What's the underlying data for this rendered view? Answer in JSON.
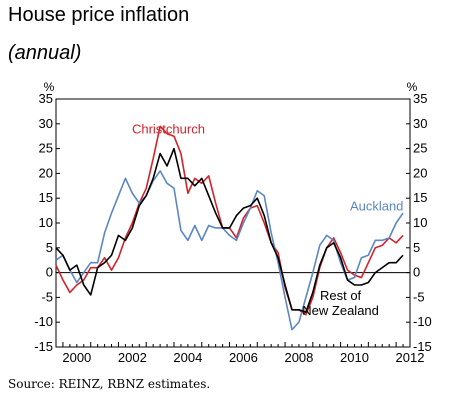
{
  "header": {
    "title": "House price inflation",
    "subtitle": "(annual)"
  },
  "footer": {
    "source": "Source: REINZ, RBNZ estimates."
  },
  "chart_data": {
    "type": "line",
    "title": "House price inflation",
    "subtitle": "(annual)",
    "y_unit_left": "%",
    "y_unit_right": "%",
    "xlim": [
      1999.75,
      2012.5
    ],
    "ylim": [
      -15,
      35
    ],
    "x_ticks": [
      2000,
      2002,
      2004,
      2006,
      2008,
      2010,
      2012
    ],
    "y_ticks": [
      -15,
      -10,
      -5,
      0,
      5,
      10,
      15,
      20,
      25,
      30,
      35
    ],
    "grid": false,
    "zero_line": true,
    "series": [
      {
        "name": "Christchurch",
        "color": "#d2232a",
        "label_x": 2003.8,
        "label_y": 28,
        "x": [
          1999.75,
          2000.0,
          2000.25,
          2000.5,
          2000.75,
          2001.0,
          2001.25,
          2001.5,
          2001.75,
          2002.0,
          2002.25,
          2002.5,
          2002.75,
          2003.0,
          2003.25,
          2003.5,
          2003.75,
          2004.0,
          2004.25,
          2004.5,
          2004.75,
          2005.0,
          2005.25,
          2005.5,
          2005.75,
          2006.0,
          2006.25,
          2006.5,
          2006.75,
          2007.0,
          2007.25,
          2007.5,
          2007.75,
          2008.0,
          2008.25,
          2008.5,
          2008.75,
          2009.0,
          2009.25,
          2009.5,
          2009.75,
          2010.0,
          2010.25,
          2010.5,
          2010.75,
          2011.0,
          2011.25,
          2011.5,
          2011.75,
          2012.0,
          2012.25
        ],
        "y": [
          1.5,
          -1.5,
          -4.0,
          -2.5,
          -1.5,
          1.0,
          1.0,
          3.0,
          0.5,
          3.0,
          7.0,
          10.0,
          14.0,
          17.0,
          23.0,
          29.5,
          28.0,
          27.5,
          24.0,
          16.0,
          19.0,
          18.0,
          19.5,
          14.0,
          9.0,
          9.0,
          7.0,
          11.0,
          13.0,
          13.5,
          10.0,
          6.0,
          4.0,
          -3.0,
          -7.5,
          -7.5,
          -8.5,
          -5.0,
          1.0,
          5.0,
          7.0,
          4.0,
          0.5,
          -0.5,
          -1.0,
          2.0,
          5.0,
          5.5,
          7.0,
          6.0,
          7.5
        ]
      },
      {
        "name": "Auckland",
        "color": "#5b87c5",
        "label_x": 2011.3,
        "label_y": 12.5,
        "x": [
          1999.75,
          2000.0,
          2000.25,
          2000.5,
          2000.75,
          2001.0,
          2001.25,
          2001.5,
          2001.75,
          2002.0,
          2002.25,
          2002.5,
          2002.75,
          2003.0,
          2003.25,
          2003.5,
          2003.75,
          2004.0,
          2004.25,
          2004.5,
          2004.75,
          2005.0,
          2005.25,
          2005.5,
          2005.75,
          2006.0,
          2006.25,
          2006.5,
          2006.75,
          2007.0,
          2007.25,
          2007.5,
          2007.75,
          2008.0,
          2008.25,
          2008.5,
          2008.75,
          2009.0,
          2009.25,
          2009.5,
          2009.75,
          2010.0,
          2010.25,
          2010.5,
          2010.75,
          2011.0,
          2011.25,
          2011.5,
          2011.75,
          2012.0,
          2012.25
        ],
        "y": [
          2.5,
          3.5,
          0.5,
          -2.0,
          0.0,
          2.0,
          2.0,
          8.0,
          12.0,
          15.5,
          19.0,
          16.0,
          14.0,
          15.5,
          18.5,
          20.5,
          18.0,
          17.0,
          8.5,
          6.5,
          9.5,
          6.5,
          9.5,
          9.0,
          9.0,
          7.5,
          6.5,
          10.0,
          13.0,
          16.5,
          15.5,
          8.0,
          2.0,
          -5.0,
          -11.5,
          -10.0,
          -5.0,
          0.0,
          5.5,
          7.5,
          6.5,
          2.0,
          -1.5,
          -1.0,
          3.0,
          3.5,
          6.5,
          6.5,
          7.0,
          10.0,
          12.0
        ]
      },
      {
        "name": "Rest of New Zealand",
        "label_lines": [
          "Rest of",
          "New Zealand"
        ],
        "color": "#000000",
        "label_x": 2010.0,
        "label_y": -5.5,
        "x": [
          1999.75,
          2000.0,
          2000.25,
          2000.5,
          2000.75,
          2001.0,
          2001.25,
          2001.5,
          2001.75,
          2002.0,
          2002.25,
          2002.5,
          2002.75,
          2003.0,
          2003.25,
          2003.5,
          2003.75,
          2004.0,
          2004.25,
          2004.5,
          2004.75,
          2005.0,
          2005.25,
          2005.5,
          2005.75,
          2006.0,
          2006.25,
          2006.5,
          2006.75,
          2007.0,
          2007.25,
          2007.5,
          2007.75,
          2008.0,
          2008.25,
          2008.5,
          2008.75,
          2009.0,
          2009.25,
          2009.5,
          2009.75,
          2010.0,
          2010.25,
          2010.5,
          2010.75,
          2011.0,
          2011.25,
          2011.5,
          2011.75,
          2012.0,
          2012.25
        ],
        "y": [
          5.0,
          3.5,
          0.5,
          1.5,
          -2.5,
          -4.5,
          1.0,
          2.0,
          3.5,
          7.5,
          6.5,
          9.0,
          13.5,
          15.5,
          19.0,
          24.0,
          21.5,
          25.0,
          19.0,
          19.0,
          17.5,
          19.0,
          15.5,
          12.0,
          9.0,
          9.0,
          11.5,
          13.0,
          13.5,
          15.0,
          11.5,
          6.0,
          3.0,
          -2.5,
          -7.5,
          -7.5,
          -8.0,
          -4.0,
          1.5,
          5.0,
          6.0,
          3.0,
          -1.5,
          -2.5,
          -2.5,
          -2.0,
          0.0,
          1.0,
          2.0,
          2.0,
          3.5
        ]
      }
    ]
  }
}
